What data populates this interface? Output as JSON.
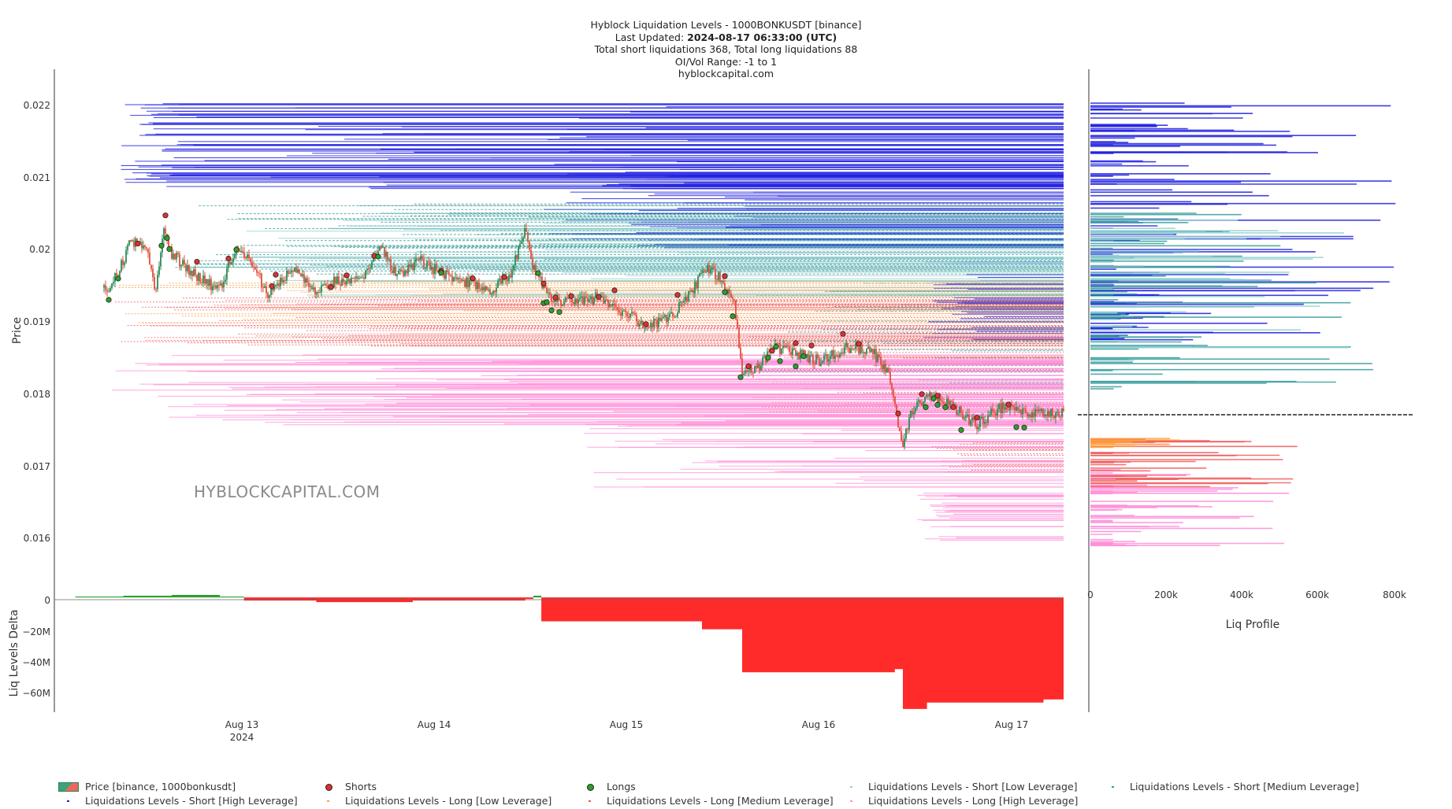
{
  "title": {
    "line1": "Hyblock Liquidation Levels - 1000BONKUSDT [binance]",
    "updated_label": "Last Updated: ",
    "updated_value": "2024-08-17 06:33:00 (UTC)",
    "line3": "Total short liquidations 368, Total long liquidations 88",
    "line4": "OI/Vol Range: -1 to 1",
    "line5": "hyblockcapital.com"
  },
  "watermark": "HYBLOCKCAPITAL.COM",
  "colors": {
    "short_high": "#1f1fe0",
    "short_medium": "#3a9c9c",
    "short_low": "#92d0d0",
    "long_low": "#ff9c3a",
    "long_medium": "#f05a5a",
    "long_high": "#ff8cd8",
    "candle_up": "#2e8b57",
    "candle_down": "#e0503c",
    "shorts_marker": "#e03030",
    "longs_marker": "#2ca02c",
    "delta_positive": "#2ca02c",
    "delta_negative": "#ff2a2a"
  },
  "chart_data": [
    {
      "type": "line",
      "name": "price_panel",
      "ylabel": "Price",
      "yticks": [
        "0.016",
        "0.017",
        "0.018",
        "0.019",
        "0.02",
        "0.021",
        "0.022"
      ],
      "ylim": [
        0.01515,
        0.02248
      ],
      "x_range": [
        "2024-08-12 03:30",
        "2024-08-17 09:00"
      ],
      "xticks": [
        {
          "date": "2024-08-13",
          "label": "Aug 13",
          "sublabel": "2024"
        },
        {
          "date": "2024-08-14",
          "label": "Aug 14",
          "sublabel": ""
        },
        {
          "date": "2024-08-15",
          "label": "Aug 15",
          "sublabel": ""
        },
        {
          "date": "2024-08-16",
          "label": "Aug 16",
          "sublabel": ""
        },
        {
          "date": "2024-08-17",
          "label": "Aug 17",
          "sublabel": ""
        }
      ],
      "price_path": [
        [
          "2024-08-12 06:00",
          0.019
        ],
        [
          "2024-08-12 08:00",
          0.01955
        ],
        [
          "2024-08-12 10:00",
          0.0194
        ],
        [
          "2024-08-12 12:00",
          0.0198
        ],
        [
          "2024-08-12 13:00",
          0.0201
        ],
        [
          "2024-08-12 15:00",
          0.0199
        ],
        [
          "2024-08-12 16:00",
          0.0193
        ],
        [
          "2024-08-12 17:00",
          0.0203
        ],
        [
          "2024-08-12 18:00",
          0.0199
        ],
        [
          "2024-08-12 21:00",
          0.0196
        ],
        [
          "2024-08-13 00:00",
          0.0194
        ],
        [
          "2024-08-13 02:00",
          0.02
        ],
        [
          "2024-08-13 04:00",
          0.0198
        ],
        [
          "2024-08-13 06:00",
          0.0193
        ],
        [
          "2024-08-13 09:00",
          0.0197
        ],
        [
          "2024-08-13 12:00",
          0.0194
        ],
        [
          "2024-08-13 14:00",
          0.0195
        ],
        [
          "2024-08-13 18:00",
          0.0196
        ],
        [
          "2024-08-13 20:00",
          0.02
        ],
        [
          "2024-08-13 22:00",
          0.0196
        ],
        [
          "2024-08-14 01:00",
          0.0198
        ],
        [
          "2024-08-14 04:00",
          0.0196
        ],
        [
          "2024-08-14 07:00",
          0.0195
        ],
        [
          "2024-08-14 10:00",
          0.0194
        ],
        [
          "2024-08-14 12:00",
          0.0196
        ],
        [
          "2024-08-14 13:00",
          0.0199
        ],
        [
          "2024-08-14 14:00",
          0.0202
        ],
        [
          "2024-08-14 15:00",
          0.0197
        ],
        [
          "2024-08-14 17:00",
          0.0193
        ],
        [
          "2024-08-14 20:00",
          0.0192
        ],
        [
          "2024-08-14 23:00",
          0.0193
        ],
        [
          "2024-08-15 02:00",
          0.0191
        ],
        [
          "2024-08-15 05:00",
          0.0189
        ],
        [
          "2024-08-15 08:00",
          0.019
        ],
        [
          "2024-08-15 11:00",
          0.0194
        ],
        [
          "2024-08-15 12:00",
          0.0197
        ],
        [
          "2024-08-15 14:00",
          0.0196
        ],
        [
          "2024-08-15 16:00",
          0.0192
        ],
        [
          "2024-08-15 17:00",
          0.0182
        ],
        [
          "2024-08-15 19:00",
          0.0183
        ],
        [
          "2024-08-15 21:00",
          0.0186
        ],
        [
          "2024-08-16 00:00",
          0.0185
        ],
        [
          "2024-08-16 03:00",
          0.0184
        ],
        [
          "2024-08-16 06:00",
          0.0186
        ],
        [
          "2024-08-16 09:00",
          0.01855
        ],
        [
          "2024-08-16 11:00",
          0.0183
        ],
        [
          "2024-08-16 12:00",
          0.0178
        ],
        [
          "2024-08-16 13:00",
          0.0172
        ],
        [
          "2024-08-16 14:00",
          0.0177
        ],
        [
          "2024-08-16 16:00",
          0.0179
        ],
        [
          "2024-08-16 19:00",
          0.0178
        ],
        [
          "2024-08-16 22:00",
          0.0175
        ],
        [
          "2024-08-17 01:00",
          0.01775
        ],
        [
          "2024-08-17 04:00",
          0.0177
        ],
        [
          "2024-08-17 06:30",
          0.01768
        ]
      ]
    },
    {
      "type": "area",
      "name": "liq_levels_delta",
      "ylabel": "Liq Levels Delta",
      "yticks": [
        "0",
        "−20M",
        "−40M",
        "−60M"
      ],
      "ylim": [
        -72,
        2
      ],
      "series": [
        {
          "name": "Liq Levels Delta",
          "points": [
            [
              "2024-08-12 06:00",
              0.5
            ],
            [
              "2024-08-12 12:00",
              1.0
            ],
            [
              "2024-08-12 18:00",
              1.5
            ],
            [
              "2024-08-13 00:00",
              0.5
            ],
            [
              "2024-08-13 03:00",
              -2.0
            ],
            [
              "2024-08-13 12:00",
              -3.0
            ],
            [
              "2024-08-14 00:00",
              -2.0
            ],
            [
              "2024-08-14 14:00",
              -1.0
            ],
            [
              "2024-08-14 15:00",
              1.0
            ],
            [
              "2024-08-14 16:00",
              -15.0
            ],
            [
              "2024-08-15 12:00",
              -20.0
            ],
            [
              "2024-08-15 17:00",
              -47.0
            ],
            [
              "2024-08-16 12:00",
              -45.0
            ],
            [
              "2024-08-16 13:00",
              -70.0
            ],
            [
              "2024-08-16 16:00",
              -66.0
            ],
            [
              "2024-08-17 06:30",
              -64.0
            ]
          ]
        }
      ]
    },
    {
      "type": "bar",
      "name": "liq_profile",
      "xlabel": "Liq Profile",
      "xticks": [
        "0",
        "200k",
        "400k",
        "600k",
        "800k"
      ],
      "xlim": [
        0,
        870000
      ],
      "current_price": 0.01768
    }
  ],
  "legend": [
    "Price [binance, 1000bonkusdt]",
    "Shorts",
    "Longs",
    "Liquidations Levels - Short [Low Leverage]",
    "Liquidations Levels - Short [Medium Leverage]",
    "Liquidations Levels - Short [High Leverage]",
    "Liquidations Levels - Long [Low Leverage]",
    "Liquidations Levels - Long [Medium Leverage]",
    "Liquidations Levels - Long [High Leverage]"
  ]
}
